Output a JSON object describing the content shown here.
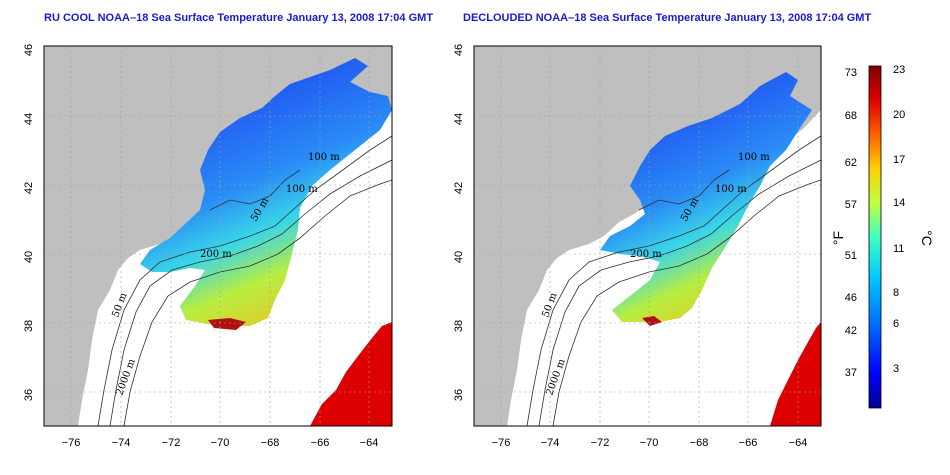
{
  "maps": [
    {
      "title": "RU COOL NOAA–18 Sea Surface Temperature January 13, 2008 17:04 GMT",
      "isobaths": [
        "100 m",
        "100 m",
        "50 m",
        "200 m",
        "50 m",
        "2000 m"
      ]
    },
    {
      "title": "DECLOUDED NOAA–18 Sea Surface Temperature January 13, 2008 17:04 GMT",
      "isobaths": [
        "100 m",
        "100 m",
        "50 m",
        "200 m",
        "50 m",
        "2000 m"
      ]
    }
  ],
  "axes": {
    "lat_ticks": [
      "46",
      "44",
      "42",
      "40",
      "38",
      "36"
    ],
    "lon_ticks": [
      "−76",
      "−74",
      "−72",
      "−70",
      "−68",
      "−66",
      "−64"
    ],
    "lat_range": [
      35,
      46
    ],
    "lon_range": [
      -77,
      -63
    ]
  },
  "colorbar": {
    "fahrenheit_label": "°F",
    "celsius_label": "°C",
    "fahrenheit_ticks": [
      "73",
      "68",
      "62",
      "57",
      "51",
      "46",
      "42",
      "37"
    ],
    "celsius_ticks": [
      "23",
      "20",
      "17",
      "14",
      "11",
      "8",
      "6",
      "3"
    ],
    "colors": [
      "#000090",
      "#0000ff",
      "#0070ff",
      "#00c8ff",
      "#40ffc0",
      "#c0ff40",
      "#ffd000",
      "#ff6000",
      "#e00000",
      "#800000"
    ]
  },
  "colors": {
    "title": "#1a1ad0",
    "land": "#bfbfbf",
    "ocean_nodata": "#ffffff"
  }
}
